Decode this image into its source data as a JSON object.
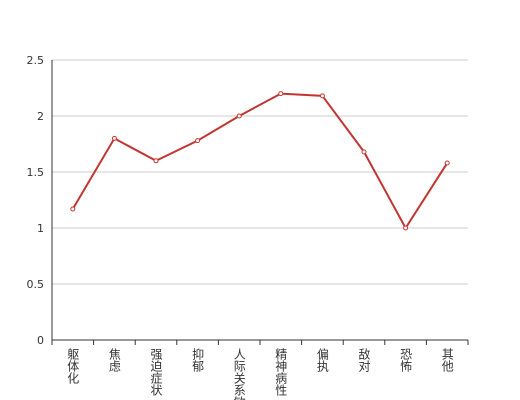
{
  "chart_data": {
    "type": "line",
    "categories": [
      "躯体化",
      "焦虑",
      "强迫症状",
      "抑郁",
      "人际关系敏感",
      "精神病性",
      "偏执",
      "敌对",
      "恐怖",
      "其他"
    ],
    "values": [
      1.17,
      1.8,
      1.6,
      1.78,
      2.0,
      2.2,
      2.18,
      1.68,
      1.0,
      1.58
    ],
    "color": "#c23531",
    "ylim": [
      0,
      2.5
    ],
    "yticks": [
      0,
      0.5,
      1,
      1.5,
      2,
      2.5
    ],
    "grid": true
  }
}
